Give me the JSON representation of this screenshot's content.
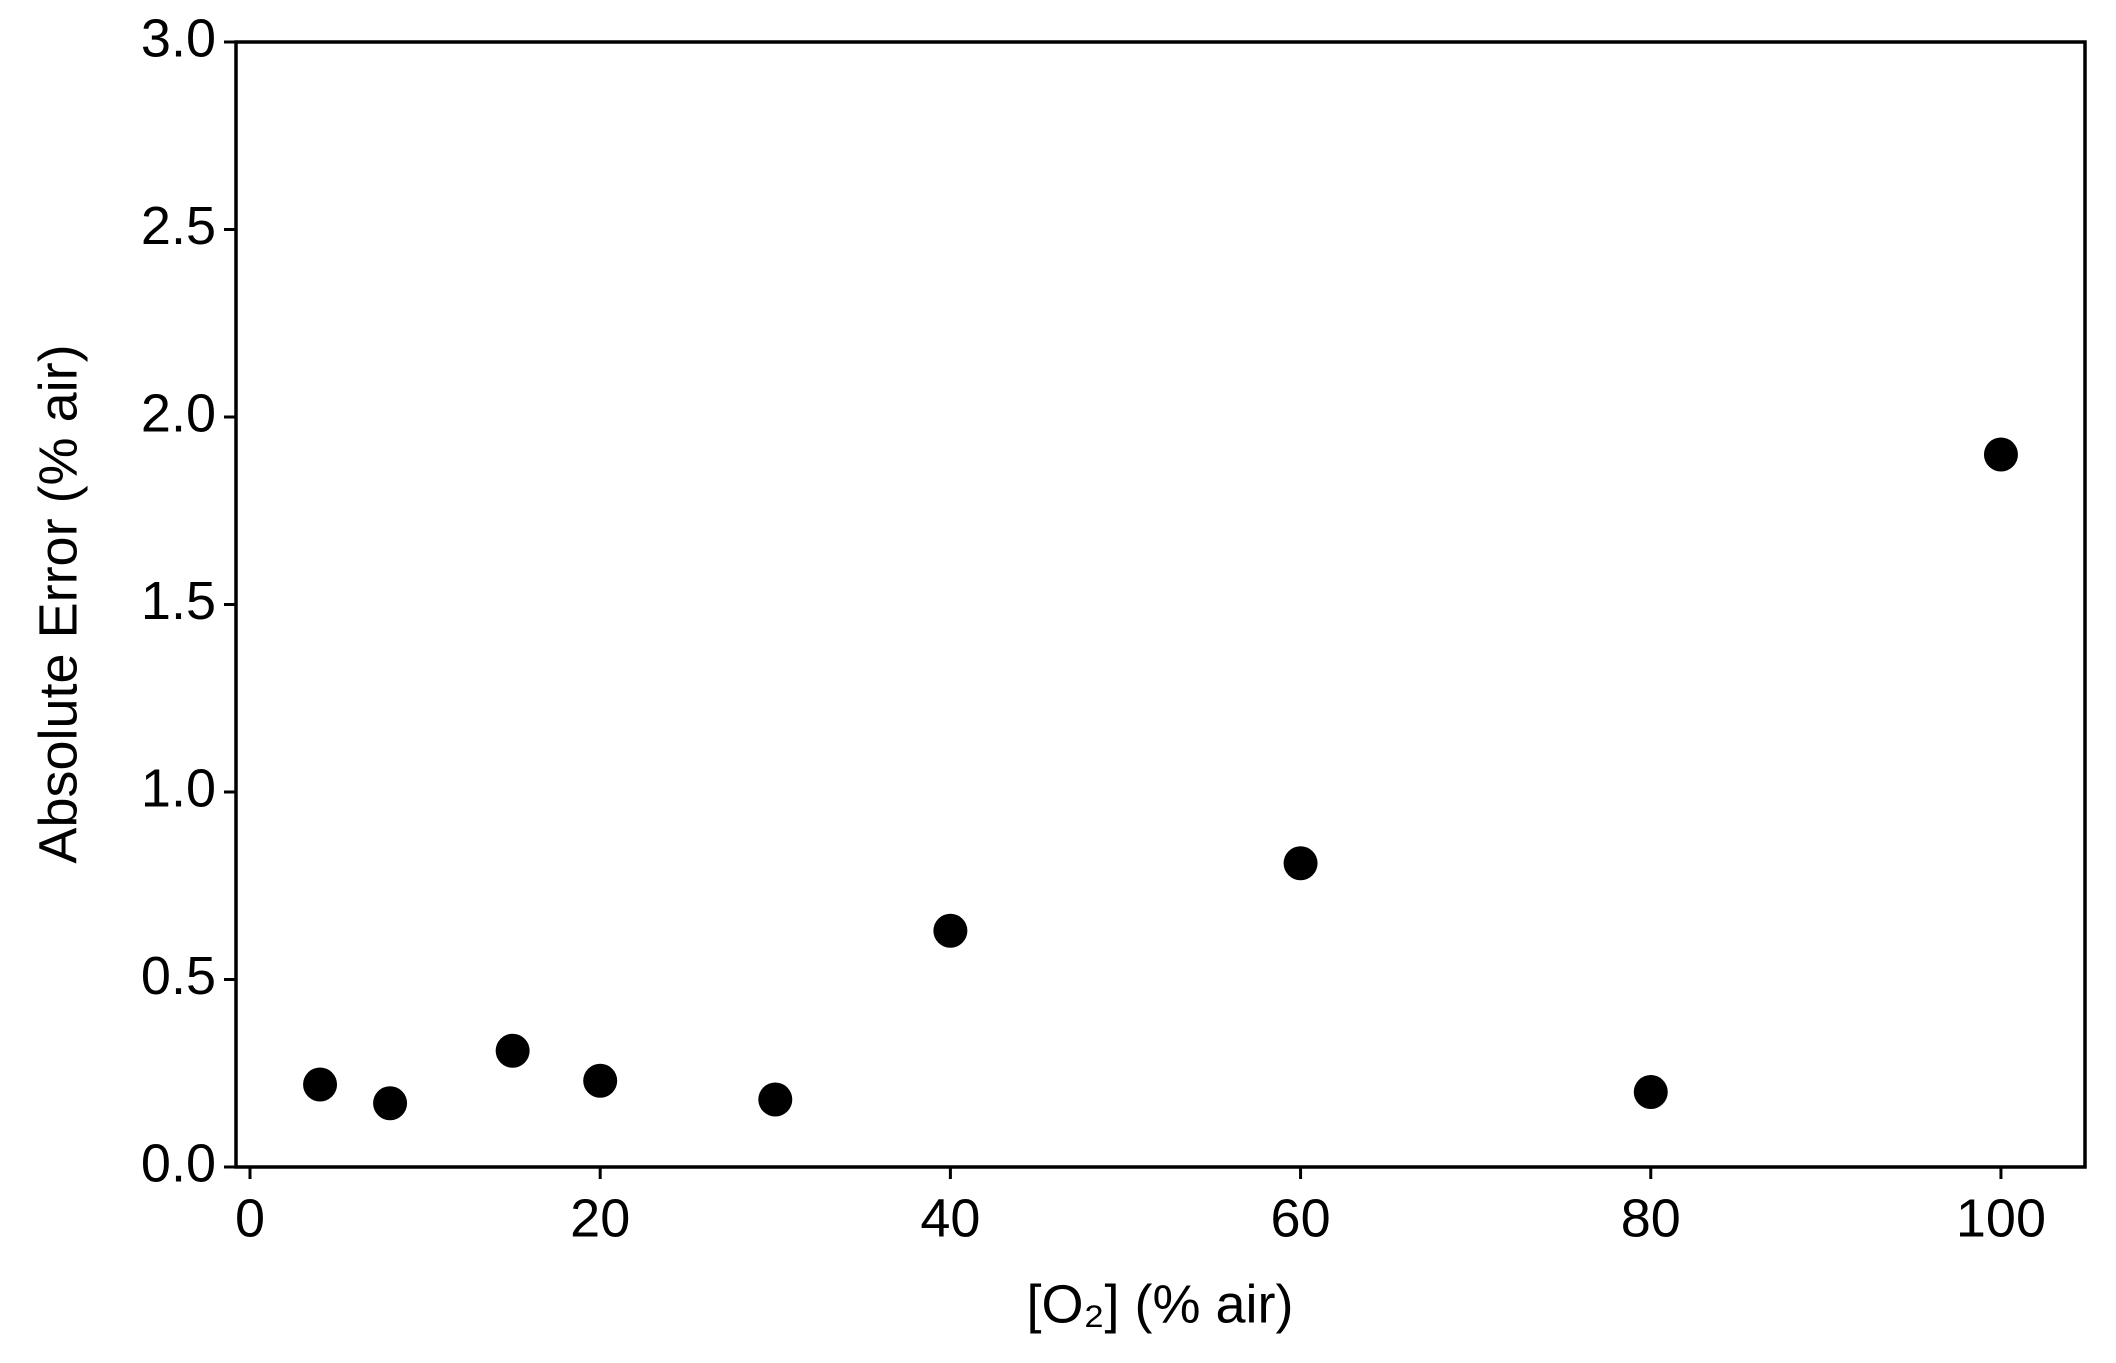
{
  "chart_data": {
    "type": "scatter",
    "xlabel": "[O₂] (% air)",
    "ylabel": "Absolute Error (% air)",
    "x": [
      4,
      8,
      15,
      20,
      30,
      40,
      60,
      80,
      100
    ],
    "values": [
      0.22,
      0.17,
      0.31,
      0.23,
      0.18,
      0.63,
      0.81,
      0.2,
      1.9
    ],
    "color": "#000000",
    "xlim": [
      -0.8,
      104.8
    ],
    "ylim": [
      0,
      3
    ],
    "xticks": [
      0,
      20,
      40,
      60,
      80,
      100
    ],
    "yticks": [
      {
        "value": 0,
        "label": "0.0"
      },
      {
        "value": 0.5,
        "label": "0.5"
      },
      {
        "value": 1,
        "label": "1.0"
      },
      {
        "value": 1.5,
        "label": "1.5"
      },
      {
        "value": 2,
        "label": "2.0"
      },
      {
        "value": 2.5,
        "label": "2.5"
      },
      {
        "value": 3,
        "label": "3.0"
      }
    ],
    "grid": false
  }
}
